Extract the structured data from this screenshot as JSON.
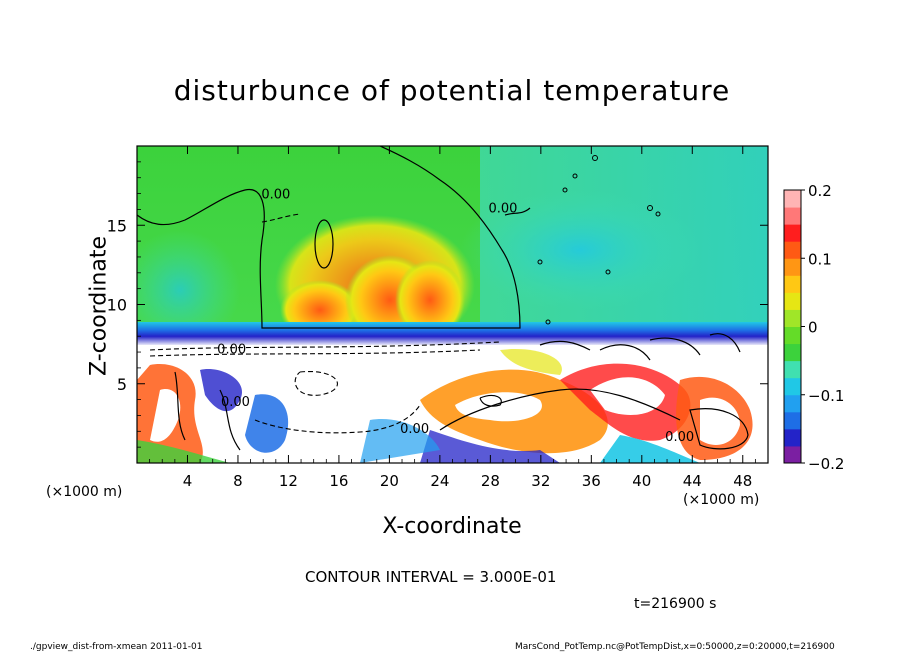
{
  "chart_data": {
    "type": "heatmap",
    "title": "disturbunce of potential temperature",
    "xlabel": "X-coordinate",
    "ylabel": "Z-coordinate",
    "x_unit_left": "(×1000 m)",
    "x_unit_right": "(×1000 m)",
    "xlim": [
      0,
      50
    ],
    "ylim": [
      0,
      20
    ],
    "xticks": [
      4,
      8,
      12,
      16,
      20,
      24,
      28,
      32,
      36,
      40,
      44,
      48
    ],
    "yticks": [
      5,
      10,
      15
    ],
    "colorbar": {
      "range": [
        -0.2,
        0.2
      ],
      "ticks": [
        {
          "value": 0.2,
          "label": "0.2"
        },
        {
          "value": 0.1,
          "label": "0.1"
        },
        {
          "value": 0,
          "label": "0"
        },
        {
          "value": -0.1,
          "label": "−0.1"
        },
        {
          "value": -0.2,
          "label": "−0.2"
        }
      ],
      "colors": [
        "#7b1fa2",
        "#2323c8",
        "#1e6ee6",
        "#21a0f0",
        "#20c8e6",
        "#40e0b0",
        "#3cd23c",
        "#64dc28",
        "#a0e628",
        "#e6e614",
        "#ffc814",
        "#ff9614",
        "#ff5a14",
        "#ff1e1e",
        "#ff7878",
        "#ffb4b4"
      ]
    },
    "contour_labels": [
      {
        "text": "0.00",
        "x": 11,
        "z": 16.7
      },
      {
        "text": "0.00",
        "x": 29,
        "z": 15.8
      },
      {
        "text": "0.00",
        "x": 22,
        "z": 1.9
      },
      {
        "text": "0.00",
        "x": 7.5,
        "z": 6.9
      },
      {
        "text": "0.00",
        "x": 7.8,
        "z": 3.6
      },
      {
        "text": "0.00",
        "x": 43,
        "z": 1.4
      }
    ],
    "contour_interval_text": "CONTOUR INTERVAL = 3.000E-01",
    "time_text": "t=216900 s"
  },
  "footer": {
    "left": "./gpview_dist-from-xmean  2011-01-01",
    "right": "MarsCond_PotTemp.nc@PotTempDist,x=0:50000,z=0:20000,t=216900"
  }
}
